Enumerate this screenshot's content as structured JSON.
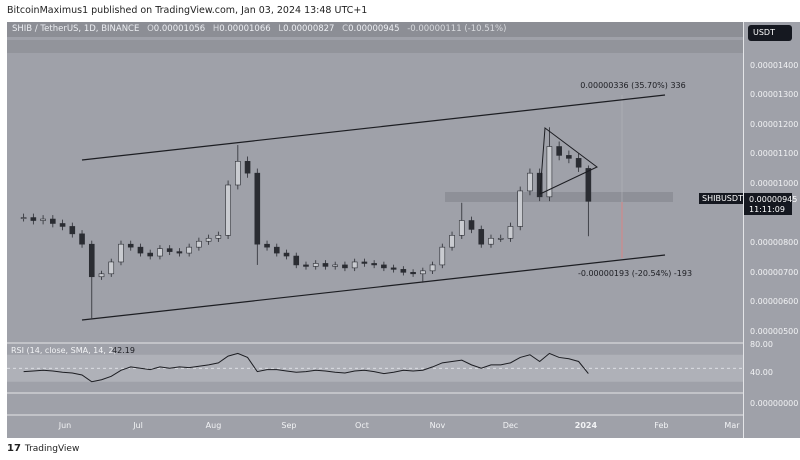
{
  "published": "BitcoinMaximus1 published on TradingView.com, Jan 03, 2024 13:48 UTC+1",
  "header": {
    "symbol": "SHIB / TetherUS, 1D, BINANCE",
    "o_label": "O",
    "o": "0.00001056",
    "h_label": "H",
    "h": "0.00001066",
    "l_label": "L",
    "l": "0.00000827",
    "c_label": "C",
    "c": "0.00000945",
    "change": "-0.00000111 (-10.51%)"
  },
  "currency": "USDT",
  "current": {
    "symbol": "SHIBUSDT",
    "price": "0.00000945",
    "countdown": "11:11:09"
  },
  "rsi": {
    "label": "RSI (14, close, SMA, 14, 2)",
    "value": "42.19",
    "ticks": [
      "80.00",
      "40.00"
    ]
  },
  "lower_pane_tick": "0.00000000",
  "annotations": {
    "up": "0.00000336 (35.70%) 336",
    "down": "-0.00000193 (-20.54%) -193"
  },
  "footer": {
    "brand": "TradingView"
  },
  "colors": {
    "background": "#9fa1a9",
    "candle": "#2a2c32",
    "measure_down": "#d98585"
  },
  "chart_data": {
    "type": "candlestick",
    "title": "SHIB / TetherUS, 1D, BINANCE",
    "ylim": [
      4.5e-06,
      1.49e-05
    ],
    "y_ticks": [
      "0.00001400",
      "0.00001300",
      "0.00001200",
      "0.00001100",
      "0.00001000",
      "0.00000800",
      "0.00000700",
      "0.00000600",
      "0.00000500"
    ],
    "x_ticks": [
      "Jun",
      "Jul",
      "Aug",
      "Sep",
      "Oct",
      "Nov",
      "Dec",
      "2024",
      "Feb",
      "Mar"
    ],
    "points": [
      {
        "d": "2023-05-15",
        "c": 8.9e-06
      },
      {
        "d": "2023-05-19",
        "c": 8.8e-06
      },
      {
        "d": "2023-05-23",
        "c": 8.85e-06
      },
      {
        "d": "2023-05-27",
        "c": 8.7e-06
      },
      {
        "d": "2023-05-31",
        "c": 8.6e-06
      },
      {
        "d": "2023-06-04",
        "c": 8.35e-06
      },
      {
        "d": "2023-06-08",
        "c": 8e-06
      },
      {
        "d": "2023-06-12",
        "c": 6.9e-06,
        "l": 5.5e-06
      },
      {
        "d": "2023-06-16",
        "c": 7e-06
      },
      {
        "d": "2023-06-20",
        "c": 7.4e-06
      },
      {
        "d": "2023-06-24",
        "c": 8e-06
      },
      {
        "d": "2023-06-28",
        "c": 7.9e-06
      },
      {
        "d": "2023-07-02",
        "c": 7.7e-06
      },
      {
        "d": "2023-07-06",
        "c": 7.6e-06
      },
      {
        "d": "2023-07-10",
        "c": 7.85e-06
      },
      {
        "d": "2023-07-14",
        "c": 7.75e-06
      },
      {
        "d": "2023-07-18",
        "c": 7.7e-06
      },
      {
        "d": "2023-07-22",
        "c": 7.9e-06
      },
      {
        "d": "2023-07-26",
        "c": 8.1e-06
      },
      {
        "d": "2023-07-30",
        "c": 8.2e-06
      },
      {
        "d": "2023-08-03",
        "c": 8.3e-06
      },
      {
        "d": "2023-08-07",
        "c": 1e-05
      },
      {
        "d": "2023-08-11",
        "c": 1.08e-05,
        "h": 1.135e-05
      },
      {
        "d": "2023-08-15",
        "c": 1.04e-05
      },
      {
        "d": "2023-08-19",
        "c": 8e-06,
        "l": 7.3e-06
      },
      {
        "d": "2023-08-23",
        "c": 7.9e-06
      },
      {
        "d": "2023-08-27",
        "c": 7.7e-06
      },
      {
        "d": "2023-08-31",
        "c": 7.6e-06
      },
      {
        "d": "2023-09-04",
        "c": 7.3e-06
      },
      {
        "d": "2023-09-08",
        "c": 7.25e-06
      },
      {
        "d": "2023-09-12",
        "c": 7.35e-06
      },
      {
        "d": "2023-09-16",
        "c": 7.25e-06
      },
      {
        "d": "2023-09-20",
        "c": 7.3e-06
      },
      {
        "d": "2023-09-24",
        "c": 7.2e-06
      },
      {
        "d": "2023-09-28",
        "c": 7.4e-06
      },
      {
        "d": "2023-10-02",
        "c": 7.35e-06
      },
      {
        "d": "2023-10-06",
        "c": 7.3e-06
      },
      {
        "d": "2023-10-10",
        "c": 7.2e-06
      },
      {
        "d": "2023-10-14",
        "c": 7.15e-06
      },
      {
        "d": "2023-10-18",
        "c": 7.05e-06
      },
      {
        "d": "2023-10-22",
        "c": 7e-06
      },
      {
        "d": "2023-10-26",
        "c": 7.1e-06,
        "l": 6.7e-06
      },
      {
        "d": "2023-10-30",
        "c": 7.3e-06
      },
      {
        "d": "2023-11-03",
        "c": 7.9e-06
      },
      {
        "d": "2023-11-07",
        "c": 8.3e-06
      },
      {
        "d": "2023-11-11",
        "c": 8.8e-06,
        "h": 9.4e-06
      },
      {
        "d": "2023-11-15",
        "c": 8.5e-06
      },
      {
        "d": "2023-11-19",
        "c": 8e-06
      },
      {
        "d": "2023-11-23",
        "c": 8.2e-06
      },
      {
        "d": "2023-11-27",
        "c": 8.2e-06
      },
      {
        "d": "2023-12-01",
        "c": 8.6e-06
      },
      {
        "d": "2023-12-05",
        "c": 9.8e-06
      },
      {
        "d": "2023-12-09",
        "c": 1.04e-05
      },
      {
        "d": "2023-12-13",
        "c": 9.6e-06
      },
      {
        "d": "2023-12-17",
        "c": 1.13e-05,
        "h": 1.195e-05
      },
      {
        "d": "2023-12-21",
        "c": 1.1e-05
      },
      {
        "d": "2023-12-25",
        "c": 1.09e-05
      },
      {
        "d": "2023-12-29",
        "c": 1.06e-05
      },
      {
        "d": "2024-01-02",
        "o": 1.056e-05,
        "h": 1.066e-05,
        "l": 8.27e-06,
        "c": 9.45e-06
      }
    ],
    "rsi_values": [
      45,
      46,
      47,
      46,
      44,
      43,
      40,
      30,
      33,
      38,
      47,
      52,
      50,
      48,
      52,
      50,
      52,
      51,
      53,
      55,
      58,
      68,
      72,
      66,
      45,
      48,
      48,
      46,
      44,
      45,
      47,
      46,
      44,
      43,
      46,
      47,
      45,
      42,
      44,
      47,
      46,
      47,
      52,
      58,
      60,
      62,
      55,
      50,
      55,
      55,
      58,
      66,
      70,
      60,
      72,
      66,
      64,
      60,
      42.19
    ],
    "rsi_ylim": [
      0,
      100
    ],
    "rsi_band": [
      30,
      70
    ]
  }
}
